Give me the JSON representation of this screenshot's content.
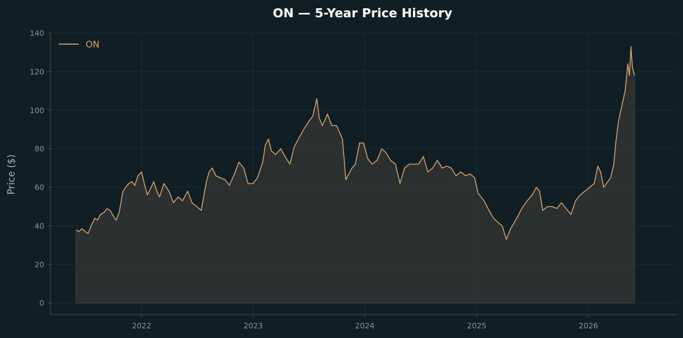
{
  "chart_data": {
    "type": "area",
    "title": "ON — 5-Year Price History",
    "xlabel": "",
    "ylabel": "Price ($)",
    "ylim": [
      -6,
      140
    ],
    "xlim": [
      "2021-03-09",
      "2026-10-17"
    ],
    "y_ticks": [
      0,
      20,
      40,
      60,
      80,
      100,
      120,
      140
    ],
    "x_ticks": [
      "2022",
      "2023",
      "2024",
      "2025",
      "2026"
    ],
    "x_tick_dates": [
      "2022-01-01",
      "2023-01-01",
      "2024-01-01",
      "2025-01-01",
      "2026-01-01"
    ],
    "grid": true,
    "legend_position": "top-left",
    "colors": {
      "background": "#0f1f25",
      "line": "#d9a46b",
      "fill": "#2e3231",
      "grid": "#1a2b31",
      "axis": "#3a4a50"
    },
    "series": [
      {
        "name": "ON",
        "points": [
          [
            "2021-06-01",
            38
          ],
          [
            "2021-06-10",
            37
          ],
          [
            "2021-06-20",
            38.5
          ],
          [
            "2021-07-01",
            37
          ],
          [
            "2021-07-10",
            36
          ],
          [
            "2021-07-20",
            40
          ],
          [
            "2021-08-01",
            44
          ],
          [
            "2021-08-10",
            43
          ],
          [
            "2021-08-20",
            46
          ],
          [
            "2021-09-01",
            47
          ],
          [
            "2021-09-10",
            49
          ],
          [
            "2021-09-20",
            48
          ],
          [
            "2021-10-01",
            45
          ],
          [
            "2021-10-10",
            43
          ],
          [
            "2021-10-20",
            47
          ],
          [
            "2021-11-01",
            58
          ],
          [
            "2021-11-10",
            60
          ],
          [
            "2021-11-20",
            62
          ],
          [
            "2021-12-01",
            63
          ],
          [
            "2021-12-10",
            61
          ],
          [
            "2021-12-20",
            66
          ],
          [
            "2022-01-01",
            68
          ],
          [
            "2022-01-10",
            62
          ],
          [
            "2022-01-20",
            56
          ],
          [
            "2022-02-01",
            60
          ],
          [
            "2022-02-10",
            63
          ],
          [
            "2022-02-20",
            58
          ],
          [
            "2022-03-01",
            55
          ],
          [
            "2022-03-15",
            62
          ],
          [
            "2022-04-01",
            58
          ],
          [
            "2022-04-15",
            52
          ],
          [
            "2022-05-01",
            55
          ],
          [
            "2022-05-15",
            53
          ],
          [
            "2022-06-01",
            58
          ],
          [
            "2022-06-15",
            52
          ],
          [
            "2022-07-01",
            50
          ],
          [
            "2022-07-15",
            48
          ],
          [
            "2022-08-01",
            63
          ],
          [
            "2022-08-10",
            68
          ],
          [
            "2022-08-20",
            70
          ],
          [
            "2022-09-01",
            66
          ],
          [
            "2022-09-15",
            65
          ],
          [
            "2022-10-01",
            64
          ],
          [
            "2022-10-15",
            61
          ],
          [
            "2022-11-01",
            67
          ],
          [
            "2022-11-15",
            73
          ],
          [
            "2022-12-01",
            70
          ],
          [
            "2022-12-15",
            62
          ],
          [
            "2023-01-01",
            62
          ],
          [
            "2023-01-15",
            65
          ],
          [
            "2023-02-01",
            73
          ],
          [
            "2023-02-10",
            82
          ],
          [
            "2023-02-20",
            85
          ],
          [
            "2023-03-01",
            79
          ],
          [
            "2023-03-15",
            77
          ],
          [
            "2023-04-01",
            80
          ],
          [
            "2023-04-15",
            76
          ],
          [
            "2023-05-01",
            72
          ],
          [
            "2023-05-15",
            81
          ],
          [
            "2023-06-01",
            86
          ],
          [
            "2023-06-15",
            90
          ],
          [
            "2023-07-01",
            94
          ],
          [
            "2023-07-15",
            97
          ],
          [
            "2023-07-28",
            106
          ],
          [
            "2023-08-05",
            96
          ],
          [
            "2023-08-15",
            92
          ],
          [
            "2023-09-01",
            98
          ],
          [
            "2023-09-15",
            92
          ],
          [
            "2023-10-01",
            92
          ],
          [
            "2023-10-20",
            85
          ],
          [
            "2023-10-31",
            64
          ],
          [
            "2023-11-10",
            67
          ],
          [
            "2023-11-20",
            70
          ],
          [
            "2023-12-01",
            72
          ],
          [
            "2023-12-15",
            83
          ],
          [
            "2023-12-28",
            83
          ],
          [
            "2024-01-10",
            75
          ],
          [
            "2024-01-25",
            72
          ],
          [
            "2024-02-10",
            74
          ],
          [
            "2024-02-25",
            80
          ],
          [
            "2024-03-10",
            78
          ],
          [
            "2024-03-25",
            74
          ],
          [
            "2024-04-10",
            72
          ],
          [
            "2024-04-25",
            62
          ],
          [
            "2024-05-10",
            70
          ],
          [
            "2024-05-25",
            72
          ],
          [
            "2024-06-10",
            72
          ],
          [
            "2024-06-25",
            72
          ],
          [
            "2024-07-10",
            76
          ],
          [
            "2024-07-25",
            68
          ],
          [
            "2024-08-10",
            70
          ],
          [
            "2024-08-25",
            74
          ],
          [
            "2024-09-10",
            70
          ],
          [
            "2024-09-25",
            71
          ],
          [
            "2024-10-10",
            70
          ],
          [
            "2024-10-25",
            66
          ],
          [
            "2024-11-10",
            68
          ],
          [
            "2024-11-25",
            66
          ],
          [
            "2024-12-10",
            67
          ],
          [
            "2024-12-25",
            65
          ],
          [
            "2025-01-05",
            57
          ],
          [
            "2025-01-15",
            55
          ],
          [
            "2025-01-25",
            53
          ],
          [
            "2025-02-10",
            48
          ],
          [
            "2025-02-25",
            44
          ],
          [
            "2025-03-10",
            42
          ],
          [
            "2025-03-25",
            40
          ],
          [
            "2025-04-08",
            33
          ],
          [
            "2025-04-20",
            38
          ],
          [
            "2025-05-01",
            41
          ],
          [
            "2025-05-15",
            45
          ],
          [
            "2025-06-01",
            50
          ],
          [
            "2025-06-15",
            53
          ],
          [
            "2025-07-01",
            56
          ],
          [
            "2025-07-15",
            60
          ],
          [
            "2025-07-25",
            58
          ],
          [
            "2025-08-05",
            48
          ],
          [
            "2025-08-20",
            50
          ],
          [
            "2025-09-05",
            50
          ],
          [
            "2025-09-20",
            49
          ],
          [
            "2025-10-05",
            52
          ],
          [
            "2025-10-20",
            49
          ],
          [
            "2025-11-05",
            46
          ],
          [
            "2025-11-20",
            53
          ],
          [
            "2025-12-05",
            56
          ],
          [
            "2025-12-20",
            58
          ],
          [
            "2026-01-05",
            60
          ],
          [
            "2026-01-20",
            62
          ],
          [
            "2026-02-01",
            71
          ],
          [
            "2026-02-10",
            68
          ],
          [
            "2026-02-20",
            60
          ],
          [
            "2026-03-01",
            62
          ],
          [
            "2026-03-15",
            65
          ],
          [
            "2026-03-25",
            72
          ],
          [
            "2026-04-01",
            84
          ],
          [
            "2026-04-10",
            95
          ],
          [
            "2026-04-20",
            102
          ],
          [
            "2026-05-01",
            110
          ],
          [
            "2026-05-10",
            124
          ],
          [
            "2026-05-15",
            118
          ],
          [
            "2026-05-20",
            133
          ],
          [
            "2026-05-25",
            122
          ],
          [
            "2026-06-01",
            118
          ]
        ]
      }
    ]
  }
}
